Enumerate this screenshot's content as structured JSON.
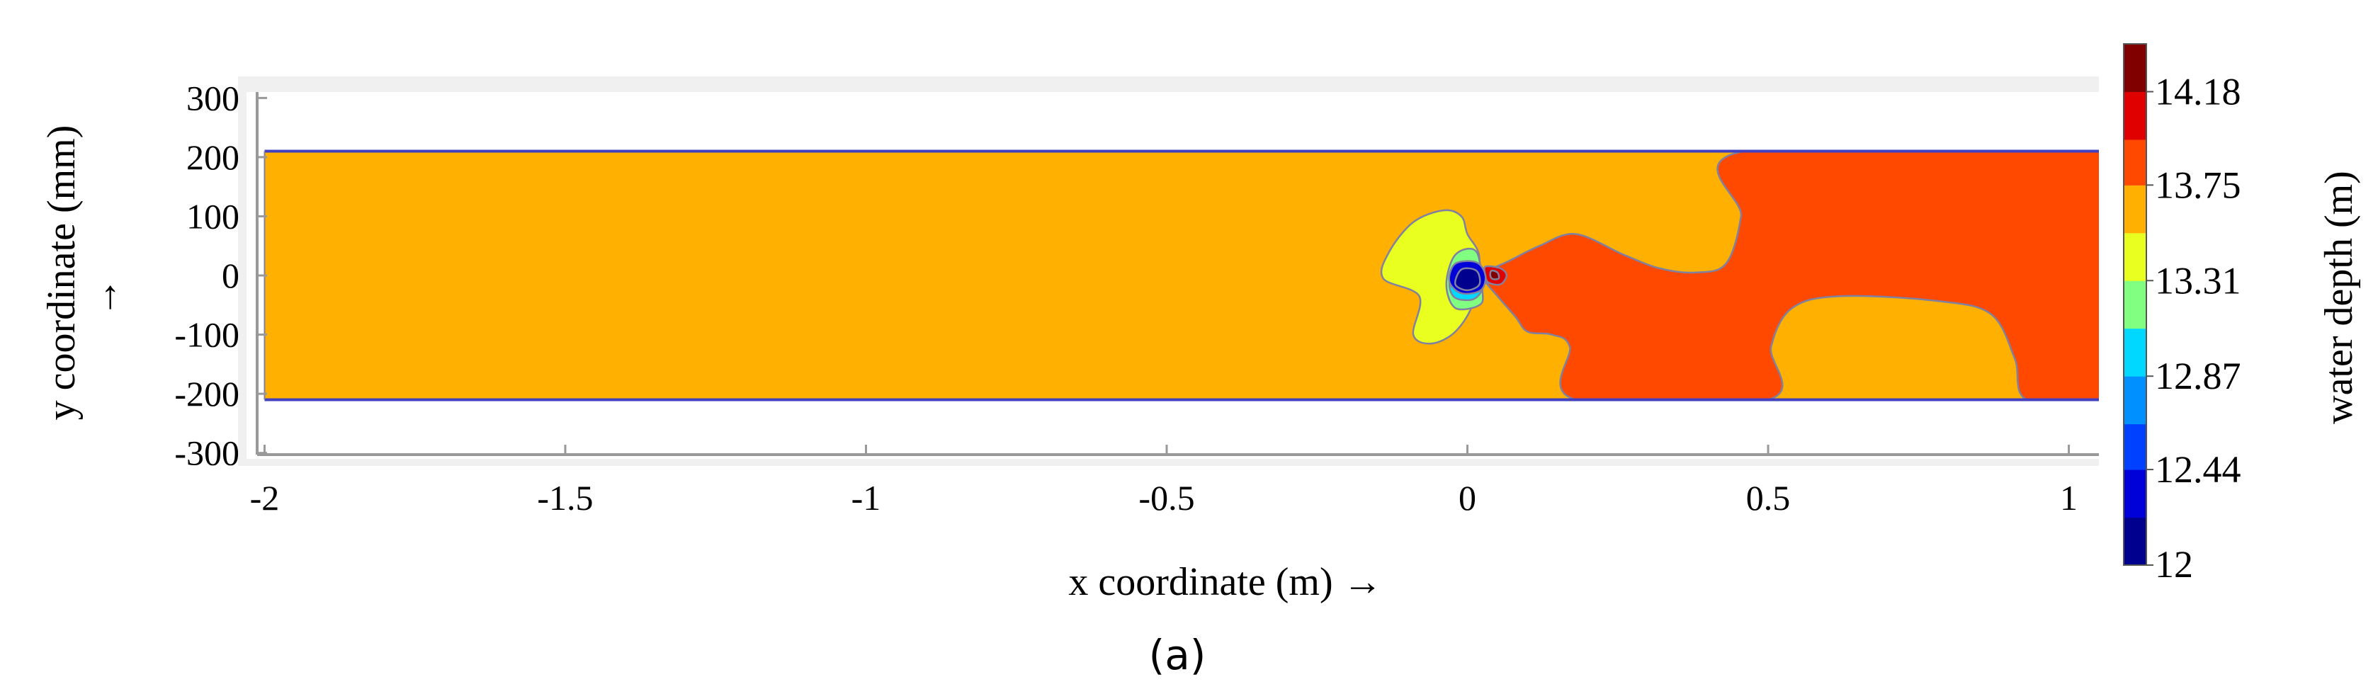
{
  "chart_data": {
    "type": "heatmap",
    "caption": "(a)",
    "xlabel": "x coordinate (m) →",
    "ylabel": "y coordinate (mm)",
    "ylabel_arrow": "→",
    "xlim": [
      -2.03,
      1.05
    ],
    "ylim": [
      -310,
      310
    ],
    "x_ticks": [
      {
        "value": -2,
        "label": "-2"
      },
      {
        "value": -1.5,
        "label": "-1.5"
      },
      {
        "value": -1,
        "label": "-1"
      },
      {
        "value": -0.5,
        "label": "-0.5"
      },
      {
        "value": 0,
        "label": "0"
      },
      {
        "value": 0.5,
        "label": "0.5"
      },
      {
        "value": 1,
        "label": "1"
      }
    ],
    "y_ticks": [
      {
        "value": 300,
        "label": "300"
      },
      {
        "value": 200,
        "label": "200"
      },
      {
        "value": 100,
        "label": "100"
      },
      {
        "value": 0,
        "label": "0"
      },
      {
        "value": -100,
        "label": "-100"
      },
      {
        "value": -200,
        "label": "-200"
      },
      {
        "value": -300,
        "label": "-300"
      }
    ],
    "channel": {
      "x_min": -2.0,
      "x_max": 1.05,
      "y_min": -210,
      "y_max": 210
    },
    "colorbar": {
      "title": "water depth (m)",
      "levels": [
        12,
        12.22,
        12.44,
        12.65,
        12.87,
        13.09,
        13.31,
        13.53,
        13.75,
        13.96,
        14.18,
        14.4
      ],
      "colors": [
        "#00008f",
        "#0000d9",
        "#0040ff",
        "#0090ff",
        "#00d8ff",
        "#80ff80",
        "#e8ff20",
        "#ffb000",
        "#ff4800",
        "#e00000",
        "#800000"
      ],
      "tick_labels": [
        {
          "value": 12,
          "label": "12"
        },
        {
          "value": 12.44,
          "label": "12.44"
        },
        {
          "value": 12.87,
          "label": "12.87"
        },
        {
          "value": 13.31,
          "label": "13.31"
        },
        {
          "value": 13.75,
          "label": "13.75"
        },
        {
          "value": 14.18,
          "label": "14.18"
        }
      ]
    },
    "background_depth": 13.6,
    "regions": [
      {
        "depth": 13.8,
        "points": [
          [
            0.03,
            5
          ],
          [
            0.07,
            25
          ],
          [
            0.12,
            50
          ],
          [
            0.18,
            70
          ],
          [
            0.26,
            35
          ],
          [
            0.32,
            12
          ],
          [
            0.38,
            5
          ],
          [
            0.43,
            20
          ],
          [
            0.455,
            100
          ],
          [
            0.46,
            210
          ],
          [
            1.05,
            210
          ],
          [
            1.05,
            -210
          ],
          [
            0.93,
            -210
          ],
          [
            0.91,
            -140
          ],
          [
            0.87,
            -65
          ],
          [
            0.78,
            -43
          ],
          [
            0.62,
            -35
          ],
          [
            0.54,
            -55
          ],
          [
            0.505,
            -120
          ],
          [
            0.5,
            -210
          ],
          [
            0.18,
            -210
          ],
          [
            0.17,
            -120
          ],
          [
            0.14,
            -100
          ],
          [
            0.1,
            -95
          ],
          [
            0.08,
            -70
          ],
          [
            0.05,
            -35
          ],
          [
            0.03,
            -10
          ]
        ]
      },
      {
        "depth": 13.4,
        "points": [
          [
            -0.14,
            -5
          ],
          [
            -0.13,
            40
          ],
          [
            -0.09,
            90
          ],
          [
            -0.04,
            110
          ],
          [
            -0.01,
            100
          ],
          [
            0.0,
            70
          ],
          [
            0.02,
            30
          ],
          [
            0.01,
            -45
          ],
          [
            -0.02,
            -95
          ],
          [
            -0.06,
            -115
          ],
          [
            -0.09,
            -100
          ],
          [
            -0.08,
            -35
          ]
        ]
      },
      {
        "depth": 13.2,
        "points": [
          [
            -0.02,
            35
          ],
          [
            0.015,
            40
          ],
          [
            0.025,
            -25
          ],
          [
            0.02,
            -50
          ],
          [
            -0.02,
            -55
          ],
          [
            -0.035,
            -15
          ]
        ]
      },
      {
        "depth": 12.95,
        "points": [
          [
            -0.02,
            15
          ],
          [
            0.02,
            18
          ],
          [
            0.025,
            -20
          ],
          [
            0.01,
            -40
          ],
          [
            -0.02,
            -38
          ],
          [
            -0.03,
            -15
          ]
        ]
      },
      {
        "depth": 12.3,
        "points": [
          [
            -0.02,
            20
          ],
          [
            0.015,
            22
          ],
          [
            0.03,
            0
          ],
          [
            0.022,
            -25
          ],
          [
            -0.01,
            -30
          ],
          [
            -0.03,
            -10
          ]
        ]
      },
      {
        "depth": 12.1,
        "points": [
          [
            -0.01,
            10
          ],
          [
            0.015,
            8
          ],
          [
            0.02,
            -15
          ],
          [
            0.0,
            -25
          ],
          [
            -0.02,
            -15
          ]
        ]
      },
      {
        "depth": 14.1,
        "points": [
          [
            0.03,
            15
          ],
          [
            0.055,
            12
          ],
          [
            0.065,
            0
          ],
          [
            0.055,
            -15
          ],
          [
            0.035,
            -12
          ],
          [
            0.03,
            0
          ]
        ]
      },
      {
        "depth": 14.3,
        "points": [
          [
            0.04,
            8
          ],
          [
            0.05,
            5
          ],
          [
            0.052,
            -5
          ],
          [
            0.042,
            -6
          ],
          [
            0.038,
            0
          ]
        ]
      }
    ]
  }
}
